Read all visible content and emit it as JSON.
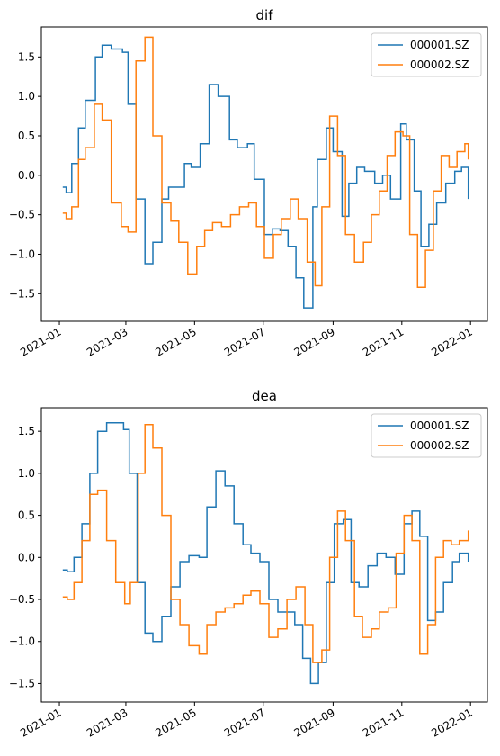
{
  "colors": {
    "series_0": "#1f77b4",
    "series_1": "#ff7f0e",
    "axis": "#000000"
  },
  "chart_data": [
    {
      "type": "line",
      "title": "dif",
      "xlabel": "",
      "ylabel": "",
      "ylim": [
        -1.85,
        1.88
      ],
      "xlim": [
        "2020-12-16",
        "2022-01-16"
      ],
      "x_ticks": [
        "2021-01-01",
        "2021-03-01",
        "2021-05-01",
        "2021-07-01",
        "2021-09-01",
        "2021-11-01",
        "2022-01-01"
      ],
      "x_tick_labels": [
        "2021-01",
        "2021-03",
        "2021-05",
        "2021-07",
        "2021-09",
        "2021-11",
        "2022-01"
      ],
      "y_ticks": [
        -1.5,
        -1.0,
        -0.5,
        0.0,
        0.5,
        1.0,
        1.5
      ],
      "y_tick_labels": [
        "−1.5",
        "−1.0",
        "−0.5",
        "0.0",
        "0.5",
        "1.0",
        "1.5"
      ],
      "grid": false,
      "legend_position": "top-right",
      "series": [
        {
          "name": "000001.SZ",
          "x": [
            "2021-01-04",
            "2021-01-07",
            "2021-01-12",
            "2021-01-18",
            "2021-01-24",
            "2021-02-02",
            "2021-02-08",
            "2021-02-16",
            "2021-02-26",
            "2021-03-03",
            "2021-03-10",
            "2021-03-18",
            "2021-03-25",
            "2021-04-02",
            "2021-04-08",
            "2021-04-14",
            "2021-04-22",
            "2021-04-28",
            "2021-05-06",
            "2021-05-14",
            "2021-05-22",
            "2021-06-01",
            "2021-06-08",
            "2021-06-17",
            "2021-06-23",
            "2021-07-02",
            "2021-07-09",
            "2021-07-16",
            "2021-07-23",
            "2021-07-30",
            "2021-08-06",
            "2021-08-14",
            "2021-08-18",
            "2021-08-26",
            "2021-09-01",
            "2021-09-09",
            "2021-09-15",
            "2021-09-22",
            "2021-09-29",
            "2021-10-08",
            "2021-10-15",
            "2021-10-22",
            "2021-10-31",
            "2021-11-05",
            "2021-11-12",
            "2021-11-18",
            "2021-11-25",
            "2021-12-02",
            "2021-12-10",
            "2021-12-18",
            "2021-12-24",
            "2021-12-30"
          ],
          "y": [
            -0.15,
            -0.22,
            0.15,
            0.6,
            0.95,
            1.5,
            1.65,
            1.6,
            1.56,
            0.9,
            -0.3,
            -1.12,
            -0.85,
            -0.3,
            -0.15,
            -0.15,
            0.15,
            0.1,
            0.4,
            1.15,
            1.0,
            0.45,
            0.35,
            0.4,
            -0.05,
            -0.75,
            -0.68,
            -0.7,
            -0.9,
            -1.3,
            -1.68,
            -0.4,
            0.2,
            0.6,
            0.3,
            -0.52,
            -0.1,
            0.1,
            0.05,
            -0.1,
            0.0,
            -0.3,
            0.65,
            0.45,
            -0.2,
            -0.9,
            -0.62,
            -0.35,
            -0.1,
            0.05,
            0.1,
            -0.3
          ]
        },
        {
          "name": "000002.SZ",
          "x": [
            "2021-01-04",
            "2021-01-07",
            "2021-01-12",
            "2021-01-18",
            "2021-01-24",
            "2021-02-01",
            "2021-02-08",
            "2021-02-16",
            "2021-02-25",
            "2021-03-03",
            "2021-03-10",
            "2021-03-18",
            "2021-03-25",
            "2021-04-02",
            "2021-04-10",
            "2021-04-17",
            "2021-04-25",
            "2021-05-03",
            "2021-05-10",
            "2021-05-17",
            "2021-05-25",
            "2021-06-02",
            "2021-06-10",
            "2021-06-18",
            "2021-06-25",
            "2021-07-02",
            "2021-07-10",
            "2021-07-17",
            "2021-07-25",
            "2021-08-01",
            "2021-08-09",
            "2021-08-16",
            "2021-08-22",
            "2021-08-29",
            "2021-09-05",
            "2021-09-12",
            "2021-09-20",
            "2021-09-28",
            "2021-10-05",
            "2021-10-12",
            "2021-10-19",
            "2021-10-26",
            "2021-11-02",
            "2021-11-08",
            "2021-11-15",
            "2021-11-22",
            "2021-11-29",
            "2021-12-06",
            "2021-12-13",
            "2021-12-20",
            "2021-12-27",
            "2021-12-30"
          ],
          "y": [
            -0.48,
            -0.55,
            -0.4,
            0.2,
            0.35,
            0.9,
            0.7,
            -0.35,
            -0.65,
            -0.72,
            1.45,
            1.75,
            0.5,
            -0.35,
            -0.58,
            -0.85,
            -1.25,
            -0.9,
            -0.7,
            -0.6,
            -0.65,
            -0.5,
            -0.4,
            -0.35,
            -0.65,
            -1.05,
            -0.75,
            -0.55,
            -0.3,
            -0.55,
            -1.1,
            -1.4,
            -0.4,
            0.75,
            0.25,
            -0.75,
            -1.1,
            -0.85,
            -0.5,
            -0.2,
            0.25,
            0.55,
            0.5,
            -0.75,
            -1.42,
            -0.95,
            -0.2,
            0.25,
            0.1,
            0.3,
            0.4,
            0.2
          ]
        }
      ]
    },
    {
      "type": "line",
      "title": "dea",
      "xlabel": "",
      "ylabel": "",
      "ylim": [
        -1.72,
        1.78
      ],
      "xlim": [
        "2020-12-16",
        "2022-01-16"
      ],
      "x_ticks": [
        "2021-01-01",
        "2021-03-01",
        "2021-05-01",
        "2021-07-01",
        "2021-09-01",
        "2021-11-01",
        "2022-01-01"
      ],
      "x_tick_labels": [
        "2021-01",
        "2021-03",
        "2021-05",
        "2021-07",
        "2021-09",
        "2021-11",
        "2022-01"
      ],
      "y_ticks": [
        -1.5,
        -1.0,
        -0.5,
        0.0,
        0.5,
        1.0,
        1.5
      ],
      "y_tick_labels": [
        "−1.5",
        "−1.0",
        "−0.5",
        "0.0",
        "0.5",
        "1.0",
        "1.5"
      ],
      "grid": false,
      "legend_position": "top-right",
      "series": [
        {
          "name": "000001.SZ",
          "x": [
            "2021-01-04",
            "2021-01-08",
            "2021-01-14",
            "2021-01-21",
            "2021-01-28",
            "2021-02-04",
            "2021-02-12",
            "2021-02-20",
            "2021-02-27",
            "2021-03-04",
            "2021-03-11",
            "2021-03-18",
            "2021-03-25",
            "2021-04-02",
            "2021-04-10",
            "2021-04-18",
            "2021-04-26",
            "2021-05-05",
            "2021-05-12",
            "2021-05-20",
            "2021-05-28",
            "2021-06-05",
            "2021-06-13",
            "2021-06-20",
            "2021-06-28",
            "2021-07-06",
            "2021-07-14",
            "2021-07-22",
            "2021-07-29",
            "2021-08-05",
            "2021-08-12",
            "2021-08-19",
            "2021-08-26",
            "2021-09-02",
            "2021-09-10",
            "2021-09-17",
            "2021-09-24",
            "2021-10-02",
            "2021-10-10",
            "2021-10-18",
            "2021-10-26",
            "2021-11-03",
            "2021-11-10",
            "2021-11-17",
            "2021-11-24",
            "2021-12-01",
            "2021-12-08",
            "2021-12-16",
            "2021-12-22",
            "2021-12-30"
          ],
          "y": [
            -0.15,
            -0.17,
            0.0,
            0.4,
            1.0,
            1.5,
            1.6,
            1.6,
            1.52,
            1.0,
            -0.3,
            -0.9,
            -1.0,
            -0.7,
            -0.35,
            -0.05,
            0.02,
            0.0,
            0.6,
            1.03,
            0.85,
            0.4,
            0.15,
            0.05,
            -0.05,
            -0.5,
            -0.65,
            -0.65,
            -0.8,
            -1.2,
            -1.5,
            -1.25,
            -0.3,
            0.4,
            0.45,
            -0.3,
            -0.35,
            -0.1,
            0.05,
            0.0,
            -0.2,
            0.4,
            0.55,
            0.25,
            -0.75,
            -0.65,
            -0.3,
            -0.05,
            0.05,
            -0.05
          ]
        },
        {
          "name": "000002.SZ",
          "x": [
            "2021-01-04",
            "2021-01-08",
            "2021-01-14",
            "2021-01-21",
            "2021-01-28",
            "2021-02-04",
            "2021-02-12",
            "2021-02-20",
            "2021-02-28",
            "2021-03-05",
            "2021-03-12",
            "2021-03-18",
            "2021-03-25",
            "2021-04-02",
            "2021-04-10",
            "2021-04-18",
            "2021-04-26",
            "2021-05-05",
            "2021-05-12",
            "2021-05-20",
            "2021-05-28",
            "2021-06-05",
            "2021-06-13",
            "2021-06-20",
            "2021-06-28",
            "2021-07-06",
            "2021-07-14",
            "2021-07-22",
            "2021-07-30",
            "2021-08-07",
            "2021-08-14",
            "2021-08-22",
            "2021-08-29",
            "2021-09-05",
            "2021-09-12",
            "2021-09-20",
            "2021-09-27",
            "2021-10-05",
            "2021-10-12",
            "2021-10-20",
            "2021-10-27",
            "2021-11-03",
            "2021-11-10",
            "2021-11-17",
            "2021-11-24",
            "2021-12-01",
            "2021-12-08",
            "2021-12-15",
            "2021-12-22",
            "2021-12-30"
          ],
          "y": [
            -0.47,
            -0.5,
            -0.3,
            0.2,
            0.75,
            0.8,
            0.2,
            -0.3,
            -0.55,
            -0.3,
            1.0,
            1.58,
            1.3,
            0.5,
            -0.5,
            -0.8,
            -1.05,
            -1.15,
            -0.8,
            -0.65,
            -0.6,
            -0.55,
            -0.45,
            -0.4,
            -0.55,
            -0.95,
            -0.85,
            -0.5,
            -0.35,
            -0.8,
            -1.25,
            -1.1,
            0.0,
            0.55,
            0.2,
            -0.7,
            -0.95,
            -0.85,
            -0.65,
            -0.6,
            0.05,
            0.5,
            0.2,
            -1.15,
            -0.8,
            0.0,
            0.2,
            0.15,
            0.2,
            0.32
          ]
        }
      ]
    }
  ]
}
